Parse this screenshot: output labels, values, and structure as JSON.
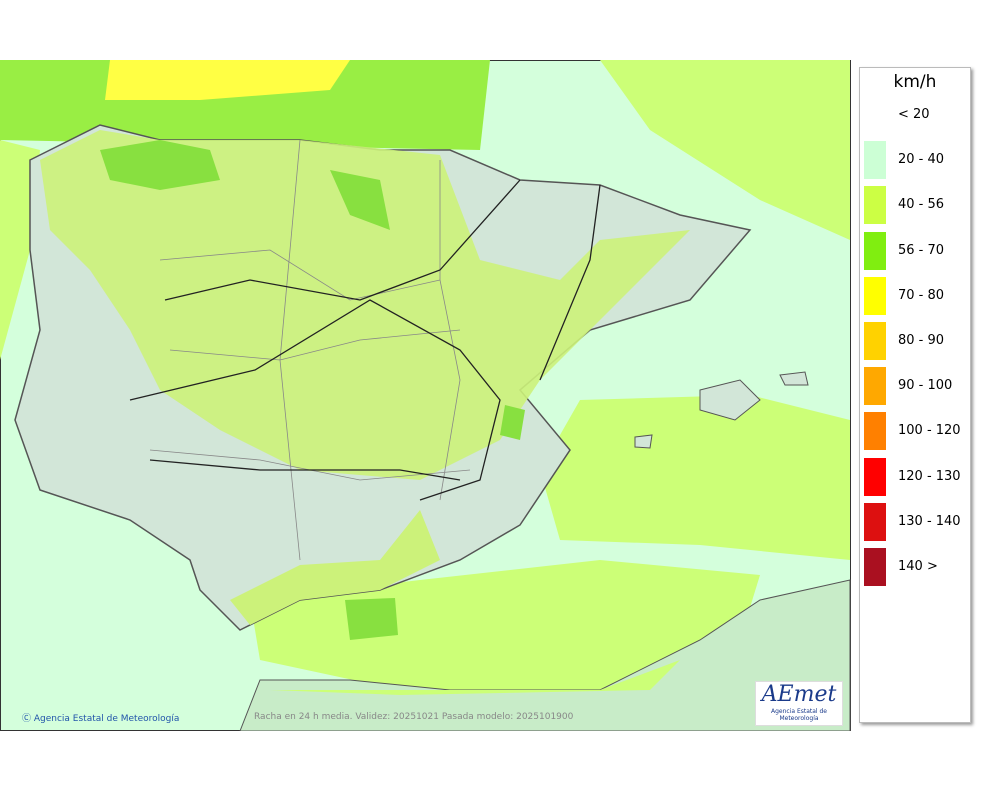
{
  "legend": {
    "unit": "km/h",
    "items": [
      {
        "label": "< 20",
        "color": null
      },
      {
        "label": "20 - 40",
        "color": "#ccffd5"
      },
      {
        "label": "40 - 56",
        "color": "#ccff44"
      },
      {
        "label": "56 - 70",
        "color": "#80ee10"
      },
      {
        "label": "70 - 80",
        "color": "#ffff00"
      },
      {
        "label": "80 - 90",
        "color": "#ffd200"
      },
      {
        "label": "90 - 100",
        "color": "#ffa800"
      },
      {
        "label": "100 - 120",
        "color": "#ff8000"
      },
      {
        "label": "120 - 130",
        "color": "#ff0000"
      },
      {
        "label": "130 - 140",
        "color": "#dd1010"
      },
      {
        "label": "140 >",
        "color": "#aa1020"
      }
    ]
  },
  "footer": {
    "credit": "Agencia Estatal de Meteorología",
    "caption": "Racha en 24 h media. Validez: 20251021 Pasada modelo: 2025101900"
  },
  "logo": {
    "name": "AEmet",
    "subtitle": "Agencia Estatal de Meteorología"
  }
}
